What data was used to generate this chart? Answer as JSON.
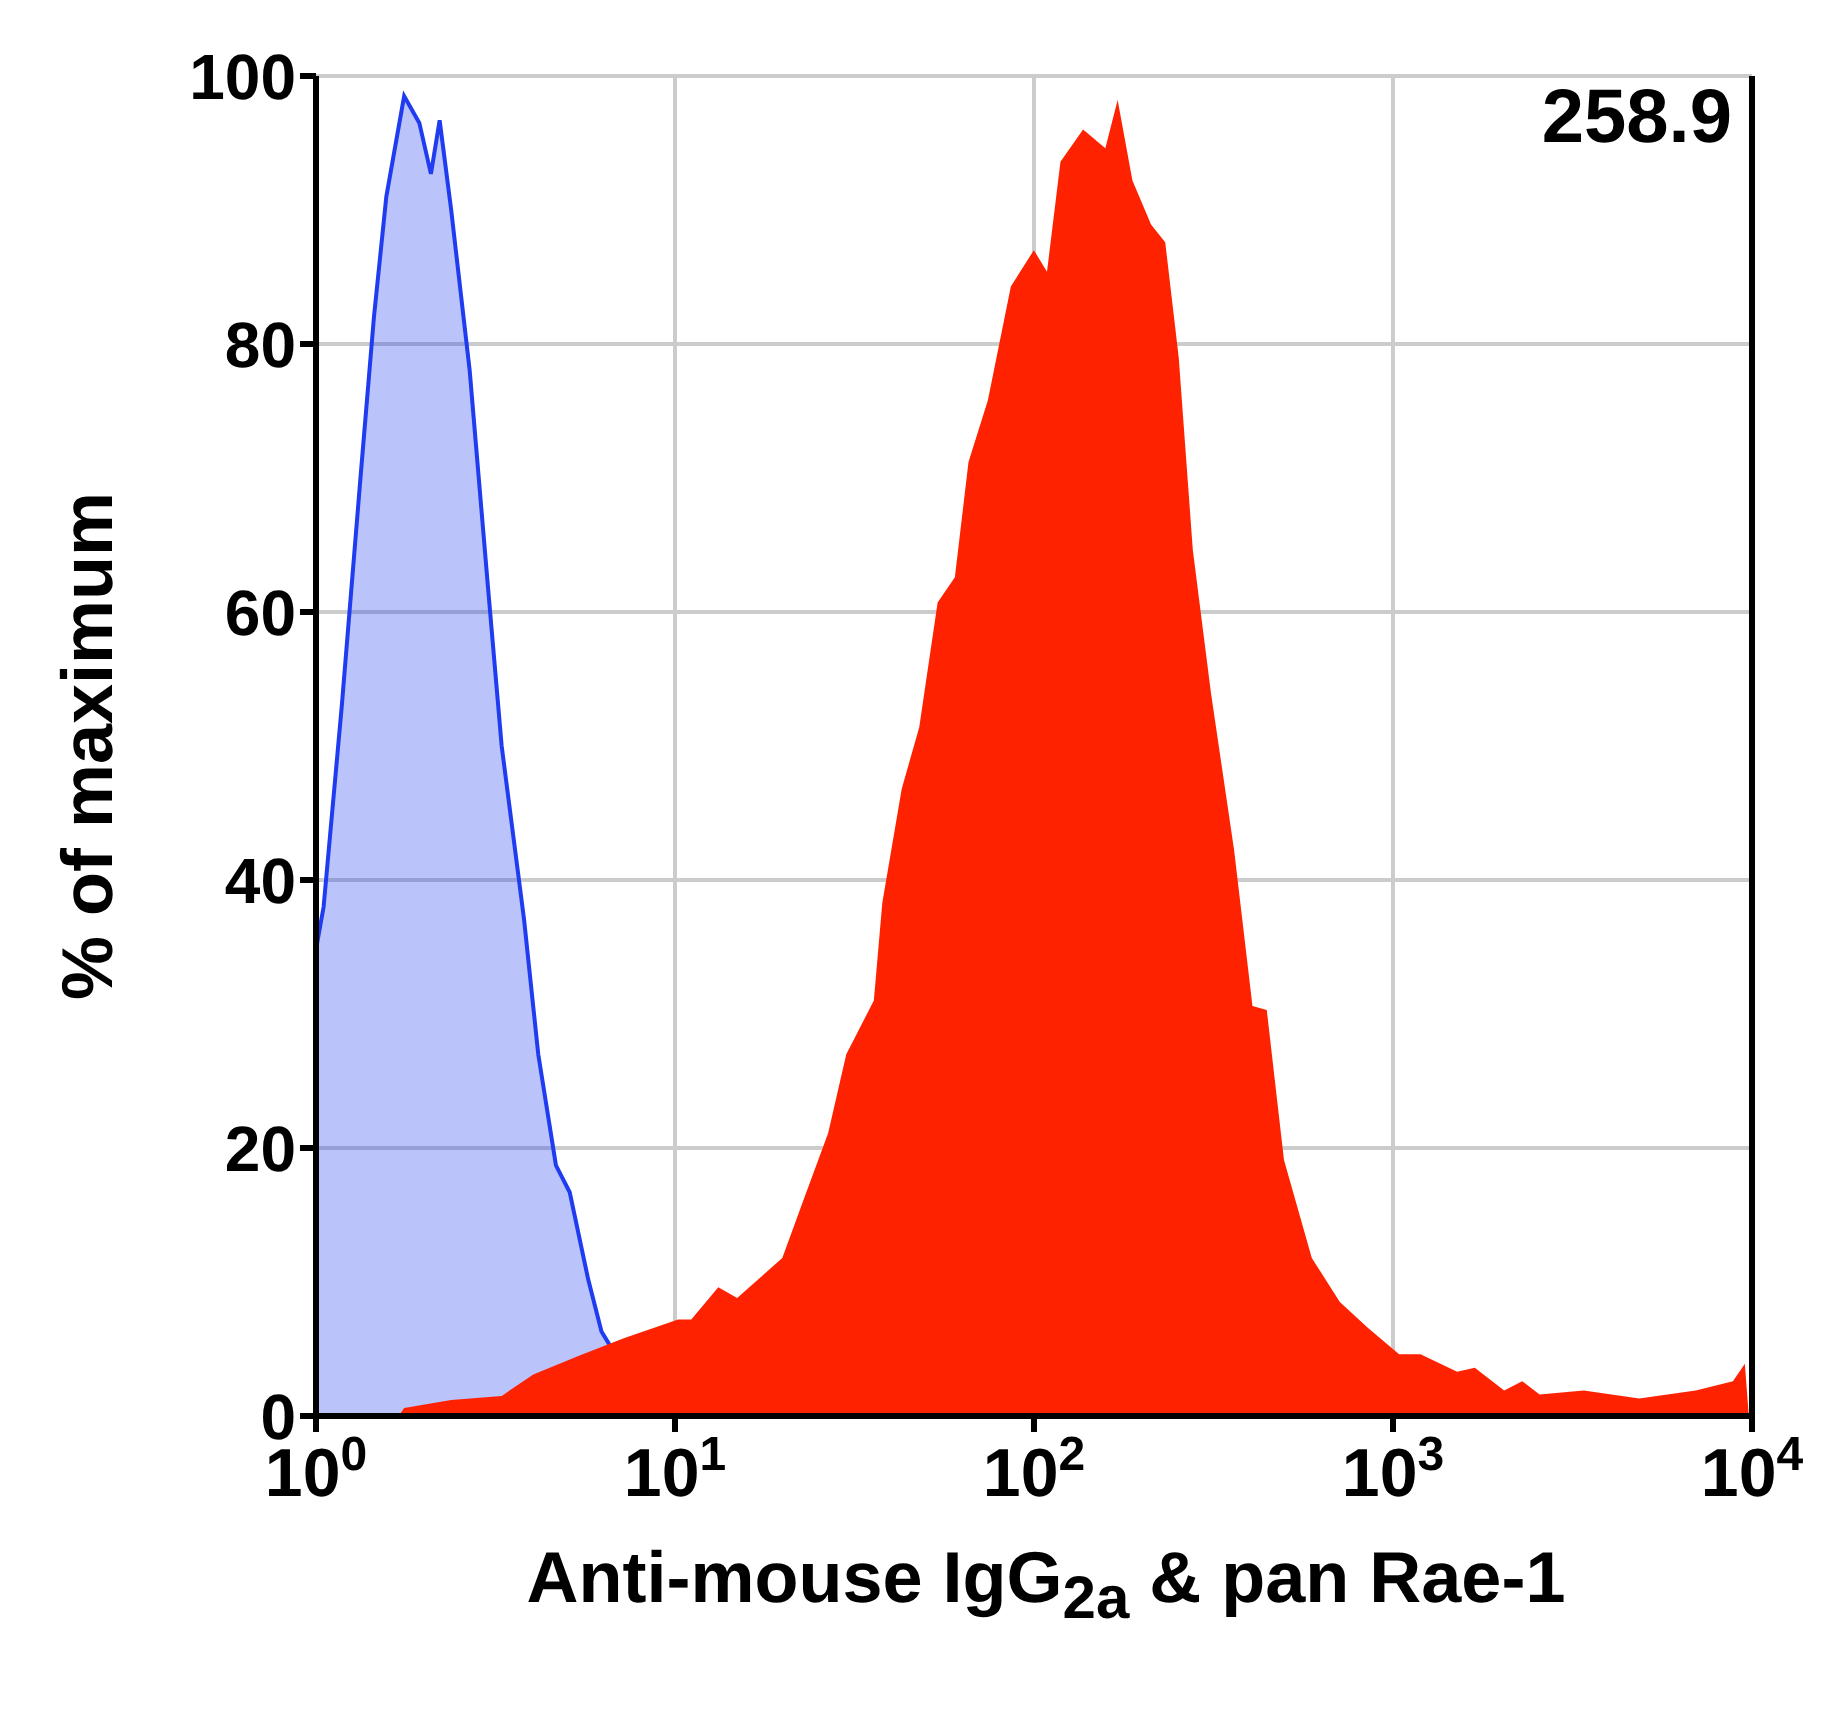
{
  "chart_data": {
    "type": "area",
    "xlabel": "Anti-mouse IgG$_{2a}$ & pan Rae-1",
    "ylabel": "% of maximum",
    "annotations": [
      "258.9"
    ],
    "log": "x",
    "grid": true,
    "xlim": [
      1,
      10000
    ],
    "xticks": [
      {
        "value": 1,
        "label": "10$^{0}$"
      },
      {
        "value": 10,
        "label": "10$^{1}$"
      },
      {
        "value": 100,
        "label": "10$^{2}$"
      },
      {
        "value": 1000,
        "label": "10$^{3}$"
      },
      {
        "value": 10000,
        "label": "10$^{4}$"
      }
    ],
    "ylim": [
      0,
      100
    ],
    "yticks": [
      0,
      20,
      40,
      60,
      80,
      100
    ],
    "series": [
      {
        "color": "#1f3cf0",
        "x": [
          1.0,
          1.003,
          1.05,
          1.18,
          1.33,
          1.45,
          1.57,
          1.76,
          1.94,
          2.09,
          2.21,
          2.38,
          2.68,
          3.01,
          3.29,
          3.8,
          4.16,
          4.66,
          5.09,
          5.73,
          6.24,
          6.82
        ],
        "values": [
          60,
          35,
          38,
          53,
          70,
          82,
          91,
          98.5,
          96.5,
          92.7,
          96.7,
          90,
          78,
          62,
          50,
          37,
          27,
          18.7,
          16.7,
          10.2,
          6.3,
          4.6
        ]
      },
      {
        "color": "#ff2200",
        "x": [
          1.7,
          1.76,
          2.38,
          3.29,
          4.03,
          5.4,
          7.2,
          10.2,
          11.1,
          13.2,
          14.9,
          19.9,
          23,
          26.7,
          30,
          35.8,
          37.8,
          42.8,
          47.9,
          53.9,
          60.2,
          65.7,
          74.4,
          86.2,
          99.9,
          108.7,
          118.5,
          137,
          158,
          171,
          188,
          212,
          232,
          253,
          277,
          311,
          361,
          406,
          445,
          497,
          594,
          711,
          849,
          1040,
          1193,
          1509,
          1690,
          2040,
          2290,
          2560,
          3400,
          4850,
          6970,
          8850,
          9550,
          9800
        ],
        "values": [
          0,
          0.6,
          1.2,
          1.5,
          3.1,
          4.5,
          5.8,
          7.2,
          7.2,
          9.6,
          8.8,
          11.8,
          16.4,
          21.1,
          27,
          31,
          38.3,
          46.8,
          51.4,
          60.7,
          62.6,
          71.2,
          75.8,
          84.3,
          87,
          85.4,
          93.6,
          96,
          94.6,
          98.2,
          92.2,
          88.9,
          87.6,
          79,
          64.6,
          54,
          42.2,
          30.6,
          30.3,
          19.1,
          11.8,
          8.5,
          6.6,
          4.6,
          4.6,
          3.3,
          3.6,
          1.9,
          2.6,
          1.6,
          1.9,
          1.3,
          1.9,
          2.6,
          3.9,
          0
        ]
      }
    ]
  }
}
